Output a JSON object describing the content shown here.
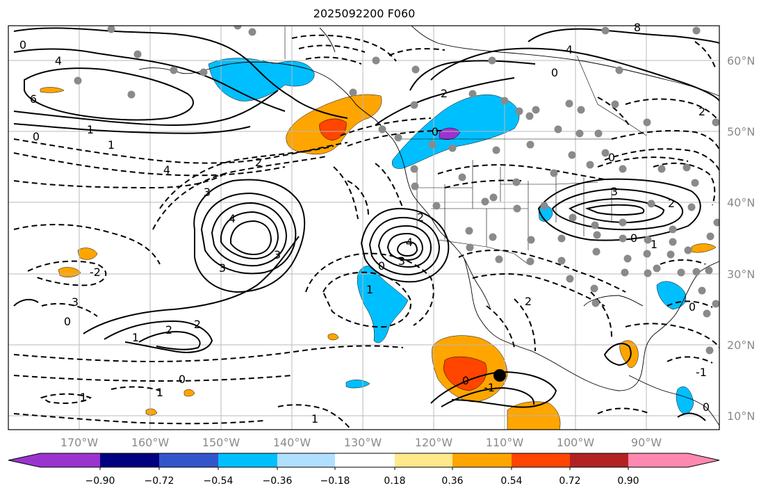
{
  "title": "2025092200 F060",
  "lat_labels": [
    "60°N",
    "50°N",
    "40°N",
    "30°N",
    "20°N",
    "10°N"
  ],
  "lon_labels": [
    "170°W",
    "160°W",
    "150°W",
    "140°W",
    "130°W",
    "120°W",
    "110°W",
    "100°W",
    "90°W"
  ],
  "colorbar": {
    "tick_labels": [
      "−0.90",
      "−0.72",
      "−0.54",
      "−0.36",
      "−0.18",
      "0.18",
      "0.36",
      "0.54",
      "0.72",
      "0.90"
    ],
    "colors": [
      "#9b34cf",
      "#000080",
      "#3355cc",
      "#00bfff",
      "#b0e0ff",
      "#ffffff",
      "#ffe98a",
      "#ffa500",
      "#ff4500",
      "#b22222",
      "#ff88b0"
    ]
  },
  "contour_labels": {
    "c1": "0",
    "c2": "4",
    "c3": "6",
    "c4": "1",
    "c5": "0",
    "c6": "1",
    "c7": "2",
    "c8": "4",
    "c9": "3",
    "c10": "-2",
    "c11": "3",
    "c12": "3",
    "c13": "4",
    "c14": "3",
    "c15": "2",
    "c16": "2",
    "c17": "1",
    "c18": "0",
    "c19": "1",
    "c20": "0",
    "c21": "1",
    "c22": "1",
    "c23": "4",
    "c24": "0",
    "c25": "2",
    "c26": "3",
    "c27": "2",
    "c28": "0",
    "c29": "-1",
    "c30": "0",
    "c31": "1",
    "c32": "0",
    "c33": "4",
    "c34": "2",
    "c35": "3",
    "c36": "0",
    "c37": "1",
    "c38": "0",
    "c39": "2",
    "c40": "0",
    "c41": "-1",
    "c42": "0",
    "c43": "8",
    "c44": "2"
  }
}
